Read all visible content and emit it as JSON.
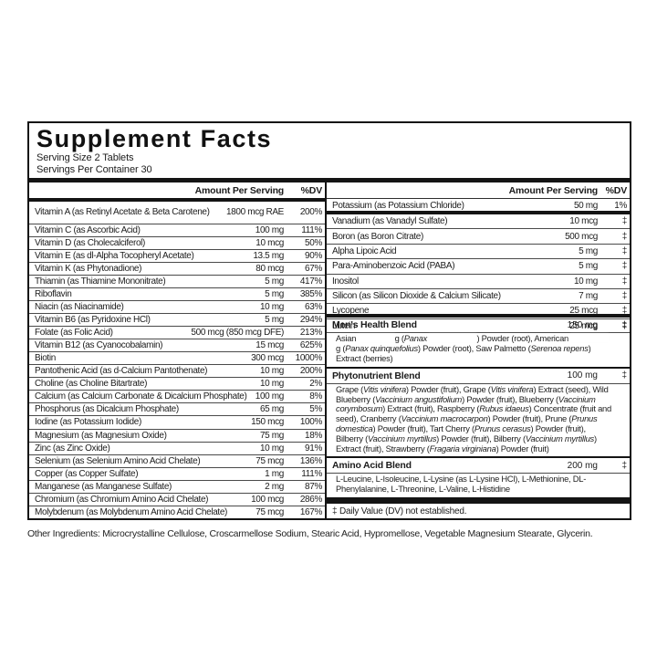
{
  "colors": {
    "text": "#1c1c1c",
    "line": "#4a4a4a",
    "bar": "#141414",
    "background": "#ffffff"
  },
  "header": {
    "title": "Supplement Facts",
    "serving_size": "Serving Size 2 Tablets",
    "servings_per_container": "Servings Per Container 30",
    "amount_header": "Amount Per Serving",
    "dv_header": "%DV"
  },
  "left_column": {
    "rows": [
      {
        "name": "Vitamin A (as Retinyl Acetate & Beta Carotene)",
        "amount": "1800 mcg RAE",
        "dv": "200%",
        "tall": true
      },
      {
        "name": "Vitamin C (as Ascorbic Acid)",
        "amount": "100 mg",
        "dv": "111%"
      },
      {
        "name": "Vitamin D (as Cholecalciferol)",
        "amount": "10 mcg",
        "dv": "50%"
      },
      {
        "name": "Vitamin E (as dl-Alpha Tocopheryl Acetate)",
        "amount": "13.5 mg",
        "dv": "90%"
      },
      {
        "name": "Vitamin K (as Phytonadione)",
        "amount": "80 mcg",
        "dv": "67%"
      },
      {
        "name": "Thiamin (as Thiamine Mononitrate)",
        "amount": "5 mg",
        "dv": "417%"
      },
      {
        "name": "Riboflavin",
        "amount": "5 mg",
        "dv": "385%"
      },
      {
        "name": "Niacin (as Niacinamide)",
        "amount": "10 mg",
        "dv": "63%"
      },
      {
        "name": "Vitamin B6 (as Pyridoxine HCl)",
        "amount": "5 mg",
        "dv": "294%"
      },
      {
        "name": "Folate (as Folic Acid)",
        "amount": "500 mcg (850 mcg DFE)",
        "dv": "213%"
      },
      {
        "name": "Vitamin B12 (as Cyanocobalamin)",
        "amount": "15 mcg",
        "dv": "625%"
      },
      {
        "name": "Biotin",
        "amount": "300 mcg",
        "dv": "1000%"
      },
      {
        "name": "Pantothenic Acid (as d-Calcium Pantothenate)",
        "amount": "10 mg",
        "dv": "200%"
      },
      {
        "name": "Choline (as Choline Bitartrate)",
        "amount": "10 mg",
        "dv": "2%"
      },
      {
        "name": "Calcium (as Calcium Carbonate & Dicalcium Phosphate)",
        "amount": "100 mg",
        "dv": "8%"
      },
      {
        "name": "Phosphorus (as Dicalcium Phosphate)",
        "amount": "65 mg",
        "dv": "5%"
      },
      {
        "name": "Iodine (as Potassium Iodide)",
        "amount": "150 mcg",
        "dv": "100%"
      },
      {
        "name": "Magnesium (as Magnesium Oxide)",
        "amount": "75 mg",
        "dv": "18%"
      },
      {
        "name": "Zinc (as Zinc Oxide)",
        "amount": "10 mg",
        "dv": "91%"
      },
      {
        "name": "Selenium (as Selenium Amino Acid Chelate)",
        "amount": "75 mcg",
        "dv": "136%"
      },
      {
        "name": "Copper (as Copper Sulfate)",
        "amount": "1 mg",
        "dv": "111%"
      },
      {
        "name": "Manganese (as Manganese Sulfate)",
        "amount": "2 mg",
        "dv": "87%"
      },
      {
        "name": "Chromium (as Chromium Amino Acid Chelate)",
        "amount": "100 mcg",
        "dv": "286%"
      },
      {
        "name": "Molybdenum (as Molybdenum Amino Acid Chelate)",
        "amount": "75 mcg",
        "dv": "167%"
      }
    ]
  },
  "right_column": {
    "group1": [
      {
        "name": "Potassium (as Potassium Chloride)",
        "amount": "50 mg",
        "dv": "1%"
      }
    ],
    "group2": [
      {
        "name": "Vanadium (as Vanadyl Sulfate)",
        "amount": "10 mcg",
        "dv": "‡"
      },
      {
        "name": "Boron (as Boron Citrate)",
        "amount": "500 mcg",
        "dv": "‡"
      },
      {
        "name": "Alpha Lipoic Acid",
        "amount": "5 mg",
        "dv": "‡"
      },
      {
        "name": "Para-Aminobenzoic Acid (PABA)",
        "amount": "5 mg",
        "dv": "‡"
      },
      {
        "name": "Inositol",
        "amount": "10 mg",
        "dv": "‡"
      },
      {
        "name": "Silicon (as Silicon Dioxide & Calcium Silicate)",
        "amount": "7 mg",
        "dv": "‡"
      },
      {
        "name": "Lycopene",
        "amount": "25 mcg",
        "dv": "‡"
      },
      {
        "name": "Lutein",
        "amount": "25 mcg",
        "dv": "‡"
      }
    ],
    "blends": [
      {
        "name": "Men's Health Blend",
        "amount": "150 mg",
        "dv": "‡",
        "desc": [
          {
            "t": "Asian "
          },
          {
            "r": 40
          },
          {
            "t": "g ("
          },
          {
            "t": "Panax ",
            "i": true
          },
          {
            "r": 52
          },
          {
            "t": ") Powder (root), American "
          },
          {
            "r": 42
          },
          {
            "t": "g ("
          },
          {
            "t": "Panax quinquefolius",
            "i": true
          },
          {
            "t": ") Powder (root), Saw Palmetto ("
          },
          {
            "t": "Serenoa repens",
            "i": true
          },
          {
            "t": ") Extract (berries)"
          }
        ]
      },
      {
        "name": "Phytonutrient Blend",
        "amount": "100 mg",
        "dv": "‡",
        "desc": [
          {
            "t": "Grape ("
          },
          {
            "t": "Vitis vinifera",
            "i": true
          },
          {
            "t": ") Powder (fruit), Grape ("
          },
          {
            "t": "Vitis vinifera",
            "i": true
          },
          {
            "t": ") Extract (seed), Wild Blueberry ("
          },
          {
            "t": "Vaccinium angustifolium",
            "i": true
          },
          {
            "t": ") Powder (fruit), Blueberry ("
          },
          {
            "t": "Vaccinium corymbosum",
            "i": true
          },
          {
            "t": ") Extract (fruit), Raspberry ("
          },
          {
            "t": "Rubus idaeus",
            "i": true
          },
          {
            "t": ") Concentrate (fruit and seed), Cranberry ("
          },
          {
            "t": "Vaccinium macrocarpon",
            "i": true
          },
          {
            "t": ") Powder (fruit), Prune ("
          },
          {
            "t": "Prunus domestica",
            "i": true
          },
          {
            "t": ") Powder (fruit), Tart Cherry ("
          },
          {
            "t": "Prunus cerasus",
            "i": true
          },
          {
            "t": ") Powder (fruit), Bilberry ("
          },
          {
            "t": "Vaccinium myrtillus",
            "i": true
          },
          {
            "t": ") Powder (fruit), Bilberry ("
          },
          {
            "t": "Vaccinium myrtillus",
            "i": true
          },
          {
            "t": ") Extract (fruit), Strawberry ("
          },
          {
            "t": "Fragaria virginiana",
            "i": true
          },
          {
            "t": ") Powder (fruit)"
          }
        ]
      },
      {
        "name": "Amino Acid Blend",
        "amount": "200 mg",
        "dv": "‡",
        "desc": [
          {
            "t": "L-Leucine, L-Isoleucine, L-Lysine (as L-Lysine HCl), L-Methionine, DL-Phenylalanine, L-Threonine, L-Valine, L-Histidine"
          }
        ]
      }
    ],
    "footnote": "‡ Daily Value (DV) not established."
  },
  "other_ingredients": "Other Ingredients: Microcrystalline Cellulose, Croscarmellose Sodium, Stearic Acid, Hypromellose, Vegetable Magnesium Stearate, Glycerin."
}
